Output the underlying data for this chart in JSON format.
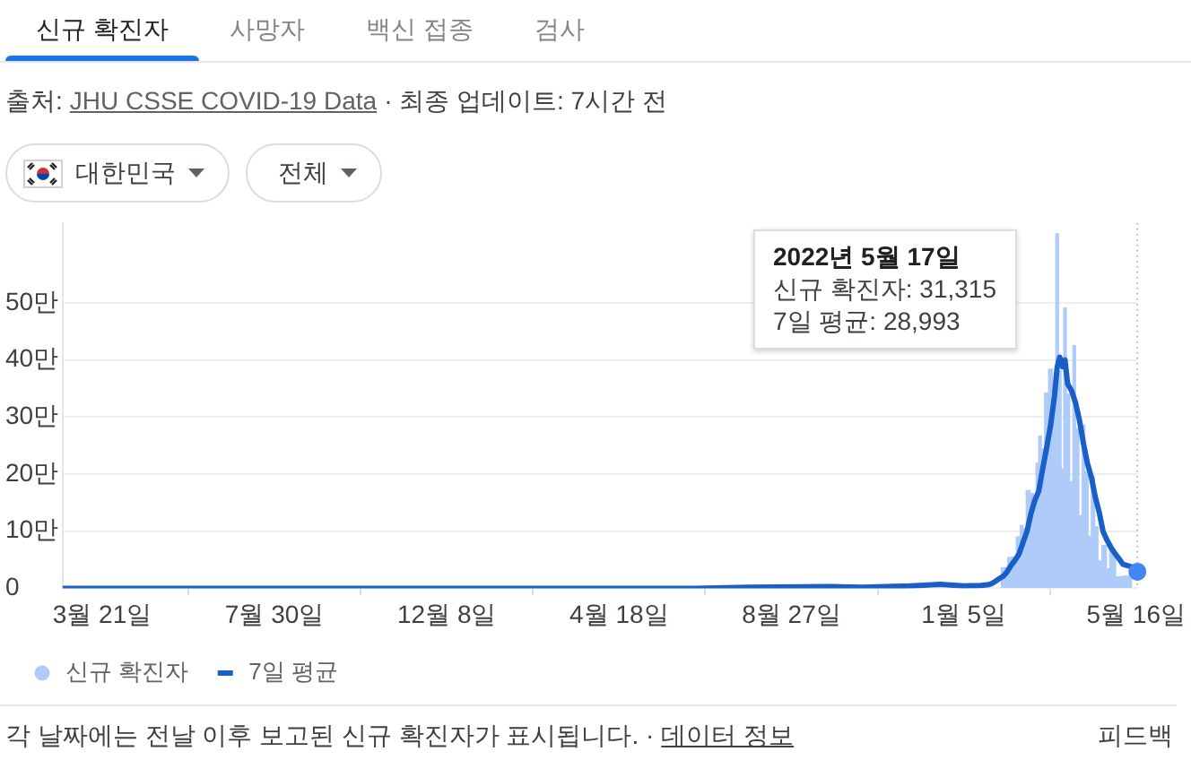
{
  "chart_data": {
    "type": "bar",
    "title": "신규 확진자",
    "annotations": [
      "사망자",
      "백신 접종",
      "검사",
      "출처:",
      "JHU CSSE COVID-19 Data",
      "· 최종 업데이트: 7시간 전",
      "대한민국",
      "전체",
      "각 날짜에는 전날 이후 보고된 신규 확진자가 표시됩니다. ·",
      "데이터 정보",
      "피드백",
      "2022년 5월 17일",
      "신규 확진자: 31,315",
      "7일 평균: 28,993"
    ],
    "xlim": [
      "2020-02-20",
      "2022-05-17"
    ],
    "xticks": [
      {
        "value": "2020-03-21",
        "label": "3월 21일"
      },
      {
        "value": "2020-07-30",
        "label": "7월 30일"
      },
      {
        "value": "2020-12-08",
        "label": "12월 8일"
      },
      {
        "value": "2021-04-18",
        "label": "4월 18일"
      },
      {
        "value": "2021-08-27",
        "label": "8월 27일"
      },
      {
        "value": "2022-01-05",
        "label": "1월 5일"
      },
      {
        "value": "2022-05-16",
        "label": "5월 16일"
      }
    ],
    "ylim": [
      0,
      64
    ],
    "yticks": [
      0,
      {
        "value": 10,
        "label": "10만"
      },
      {
        "value": 20,
        "label": "20만"
      },
      {
        "value": 30,
        "label": "30만"
      },
      {
        "value": 40,
        "label": "40만"
      },
      {
        "value": 50,
        "label": "50만"
      }
    ],
    "grid": "y",
    "legend": "bottom left",
    "ref_lines": [
      {
        "axis": "x",
        "value": "2022-05-17",
        "color": "#bdc1c6",
        "line_style": "dotted"
      }
    ],
    "series": [
      {
        "name": "신규 확진자",
        "color": "#aecbfa",
        "x": [
          "2022-02-05",
          "2022-02-10",
          "2022-02-12",
          "2022-02-16",
          "2022-02-18",
          "2022-02-20",
          "2022-02-23",
          "2022-02-26",
          "2022-02-28",
          "2022-03-02",
          "2022-03-04",
          "2022-03-06",
          "2022-03-09",
          "2022-03-12",
          "2022-03-15",
          "2022-03-17",
          "2022-03-19",
          "2022-03-21",
          "2022-03-23",
          "2022-03-25",
          "2022-03-28",
          "2022-03-30",
          "2022-04-01",
          "2022-04-04",
          "2022-04-06",
          "2022-04-08",
          "2022-04-11",
          "2022-04-13",
          "2022-04-16",
          "2022-04-18",
          "2022-04-22",
          "2022-04-25",
          "2022-04-27",
          "2022-04-29",
          "2022-05-02",
          "2022-05-09"
        ],
        "values": [
          3.6,
          5.4,
          5.5,
          9,
          11,
          10.5,
          17.1,
          16.6,
          14,
          21.9,
          26.7,
          24.4,
          34.2,
          38.4,
          36.2,
          62.1,
          38.1,
          20.9,
          49.1,
          34,
          18.7,
          42.5,
          28,
          12.7,
          28.6,
          20.5,
          9.1,
          19.5,
          10.8,
          4.8,
          7.5,
          3.4,
          7.7,
          5.7,
          2,
          2.1
        ]
      },
      {
        "name": "7일 평균",
        "type": "line",
        "color": "#1a5fc8",
        "x": [
          "2020-02-20",
          "2021-06-15",
          "2021-07-25",
          "2021-09-25",
          "2021-10-20",
          "2021-11-25",
          "2021-12-18",
          "2022-01-05",
          "2022-01-18",
          "2022-01-23",
          "2022-01-26",
          "2022-01-29",
          "2022-02-01",
          "2022-02-04",
          "2022-02-07",
          "2022-02-10",
          "2022-02-13",
          "2022-02-16",
          "2022-02-19",
          "2022-02-22",
          "2022-02-25",
          "2022-02-28",
          "2022-03-03",
          "2022-03-06",
          "2022-03-09",
          "2022-03-12",
          "2022-03-15",
          "2022-03-17",
          "2022-03-19",
          "2022-03-21",
          "2022-03-23",
          "2022-03-25",
          "2022-03-28",
          "2022-03-31",
          "2022-04-03",
          "2022-04-06",
          "2022-04-09",
          "2022-04-12",
          "2022-04-15",
          "2022-04-18",
          "2022-04-21",
          "2022-04-24",
          "2022-04-27",
          "2022-04-30",
          "2022-05-03",
          "2022-05-06",
          "2022-05-09",
          "2022-05-12",
          "2022-05-14",
          "2022-05-16",
          "2022-05-17"
        ],
        "values": [
          0,
          0,
          0.2,
          0.3,
          0.2,
          0.4,
          0.7,
          0.4,
          0.5,
          0.6,
          0.8,
          1.2,
          1.7,
          2.1,
          2.9,
          4,
          4.9,
          6,
          8,
          9.9,
          13,
          15.4,
          17,
          20.9,
          24.6,
          28.5,
          33.7,
          38.7,
          40.5,
          38.8,
          40,
          35.8,
          34.6,
          32.5,
          29.4,
          25.4,
          21.9,
          19.5,
          16,
          13.3,
          9.9,
          8.4,
          7.1,
          6.1,
          5.2,
          4.2,
          4,
          3.8,
          3.6,
          3.2,
          2.8993
        ]
      },
      {
        "type": "scatter",
        "color": "#4285f4",
        "marker": "circle",
        "x": [
          "2022-05-17"
        ],
        "values": [
          2.8993
        ]
      }
    ]
  }
}
